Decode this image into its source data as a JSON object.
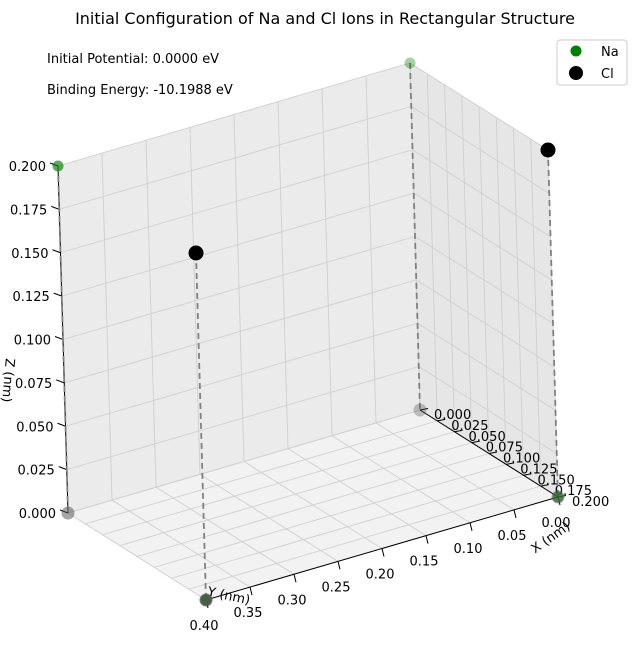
{
  "title": "Initial Configuration of Na and Cl Ions in Rectangular Structure",
  "annotations": {
    "potential": "Initial Potential: 0.0000 eV",
    "binding": "Binding Energy: -10.1988 eV"
  },
  "colors": {
    "na": "#008000",
    "cl": "#000000",
    "gray": "#808080",
    "pane": "#f2f2f2",
    "grid": "#cfcfcf"
  },
  "chart_data": {
    "type": "scatter",
    "title": "Initial Configuration of Na and Cl Ions in Rectangular Structure",
    "xlabel": "X (nm)",
    "ylabel": "Y (nm)",
    "zlabel": "Z (nm)",
    "xlim": [
      0,
      0.2
    ],
    "ylim": [
      0,
      0.4
    ],
    "zlim": [
      0,
      0.2
    ],
    "x_ticks": [
      "0.000",
      "0.025",
      "0.050",
      "0.075",
      "0.100",
      "0.125",
      "0.150",
      "0.175",
      "0.200"
    ],
    "y_ticks": [
      "0.00",
      "0.05",
      "0.10",
      "0.15",
      "0.20",
      "0.25",
      "0.30",
      "0.35",
      "0.40"
    ],
    "z_ticks": [
      "0.000",
      "0.025",
      "0.050",
      "0.075",
      "0.100",
      "0.125",
      "0.150",
      "0.175",
      "0.200"
    ],
    "legend": {
      "position": "top-right",
      "entries": [
        "Na",
        "Cl"
      ]
    },
    "series": [
      {
        "name": "Na",
        "color": "#008000",
        "points": [
          {
            "x": 0.0,
            "y": 0.0,
            "z": 0.2
          },
          {
            "x": 0.2,
            "y": 0.4,
            "z": 0.0
          },
          {
            "x": 0.0,
            "y": 0.4,
            "z": 0.2
          },
          {
            "x": 0.2,
            "y": 0.0,
            "z": 0.0
          }
        ]
      },
      {
        "name": "Cl",
        "color": "#000000",
        "points": [
          {
            "x": 0.2,
            "y": 0.0,
            "z": 0.2
          },
          {
            "x": 0.2,
            "y": 0.4,
            "z": 0.2
          }
        ]
      }
    ],
    "projection_lines": true
  }
}
